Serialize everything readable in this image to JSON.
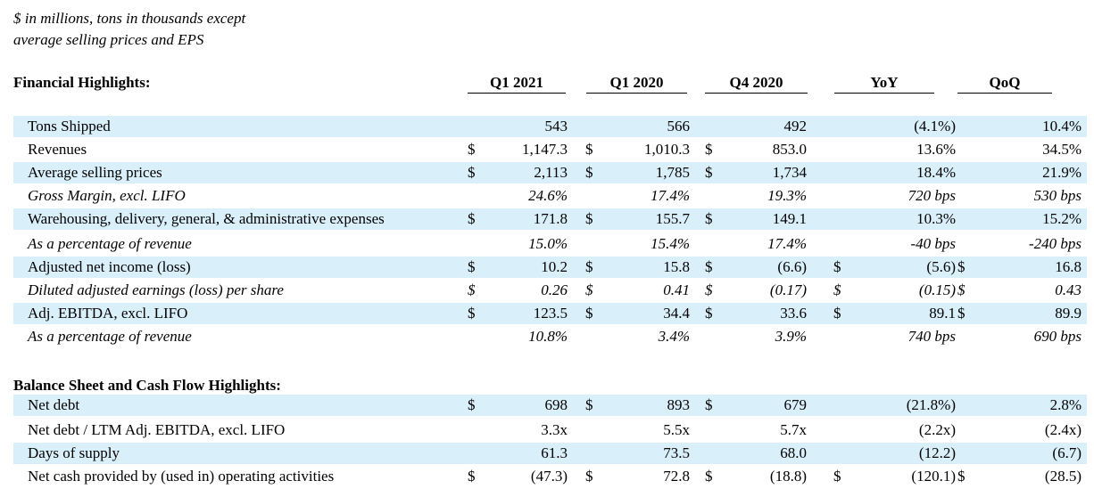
{
  "note": {
    "line1": "$ in millions, tons in thousands except",
    "line2": "average selling prices and EPS"
  },
  "sections": {
    "financial": "Financial Highlights:",
    "balance": "Balance Sheet and Cash Flow Highlights:"
  },
  "columns": [
    "Q1 2021",
    "Q1 2020",
    "Q4 2020",
    "YoY",
    "QoQ"
  ],
  "financial_rows": [
    {
      "label": "Tons Shipped",
      "italic": false,
      "shaded": true,
      "vals": [
        "543",
        "566",
        "492",
        "(4.1%)",
        "10.4%"
      ],
      "dollars": [
        "",
        "",
        "",
        "",
        ""
      ]
    },
    {
      "label": "Revenues",
      "italic": false,
      "shaded": false,
      "vals": [
        "1,147.3",
        "1,010.3",
        "853.0",
        "13.6%",
        "34.5%"
      ],
      "dollars": [
        "$",
        "$",
        "$",
        "",
        ""
      ]
    },
    {
      "label": "Average selling prices",
      "italic": false,
      "shaded": true,
      "vals": [
        "2,113",
        "1,785",
        "1,734",
        "18.4%",
        "21.9%"
      ],
      "dollars": [
        "$",
        "$",
        "$",
        "",
        ""
      ]
    },
    {
      "label": "Gross Margin, excl. LIFO",
      "italic": true,
      "shaded": false,
      "vals": [
        "24.6%",
        "17.4%",
        "19.3%",
        "720 bps",
        "530 bps"
      ],
      "dollars": [
        "",
        "",
        "",
        "",
        ""
      ]
    },
    {
      "label": "Warehousing, delivery, general, & administrative expenses",
      "italic": false,
      "shaded": true,
      "vals": [
        "171.8",
        "155.7",
        "149.1",
        "10.3%",
        "15.2%"
      ],
      "dollars": [
        "$",
        "$",
        "$",
        "",
        ""
      ]
    },
    {
      "label": "As a percentage of revenue",
      "italic": true,
      "shaded": false,
      "vals": [
        "15.0%",
        "15.4%",
        "17.4%",
        "-40 bps",
        "-240 bps"
      ],
      "dollars": [
        "",
        "",
        "",
        "",
        ""
      ]
    },
    {
      "label": "Adjusted net income (loss)",
      "italic": false,
      "shaded": true,
      "vals": [
        "10.2",
        "15.8",
        "(6.6)",
        "(5.6)",
        "16.8"
      ],
      "dollars": [
        "$",
        "$",
        "$",
        "$",
        "$"
      ]
    },
    {
      "label": "Diluted adjusted earnings (loss) per share",
      "italic": true,
      "shaded": false,
      "vals": [
        "0.26",
        "0.41",
        "(0.17)",
        "(0.15)",
        "0.43"
      ],
      "dollars": [
        "$",
        "$",
        "$",
        "$",
        "$"
      ]
    },
    {
      "label": "Adj. EBITDA, excl. LIFO",
      "italic": false,
      "shaded": true,
      "vals": [
        "123.5",
        "34.4",
        "33.6",
        "89.1",
        "89.9"
      ],
      "dollars": [
        "$",
        "$",
        "$",
        "$",
        "$"
      ]
    },
    {
      "label": "As a percentage of revenue",
      "italic": true,
      "shaded": false,
      "vals": [
        "10.8%",
        "3.4%",
        "3.9%",
        "740 bps",
        "690 bps"
      ],
      "dollars": [
        "",
        "",
        "",
        "",
        ""
      ]
    }
  ],
  "balance_rows": [
    {
      "label": "Net debt",
      "italic": false,
      "shaded": true,
      "vals": [
        "698",
        "893",
        "679",
        "(21.8%)",
        "2.8%"
      ],
      "dollars": [
        "$",
        "$",
        "$",
        "",
        ""
      ]
    },
    {
      "label": "Net debt / LTM Adj. EBITDA, excl. LIFO",
      "italic": false,
      "shaded": false,
      "vals": [
        "3.3x",
        "5.5x",
        "5.7x",
        "(2.2x)",
        "(2.4x)"
      ],
      "dollars": [
        "",
        "",
        "",
        "",
        ""
      ]
    },
    {
      "label": "Days of supply",
      "italic": false,
      "shaded": true,
      "vals": [
        "61.3",
        "73.5",
        "68.0",
        "(12.2)",
        "(6.7)"
      ],
      "dollars": [
        "",
        "",
        "",
        "",
        ""
      ]
    },
    {
      "label": "Net cash provided by (used in) operating activities",
      "italic": false,
      "shaded": false,
      "vals": [
        "(47.3)",
        "72.8",
        "(18.8)",
        "(120.1)",
        "(28.5)"
      ],
      "dollars": [
        "$",
        "$",
        "$",
        "$",
        "$"
      ]
    }
  ]
}
